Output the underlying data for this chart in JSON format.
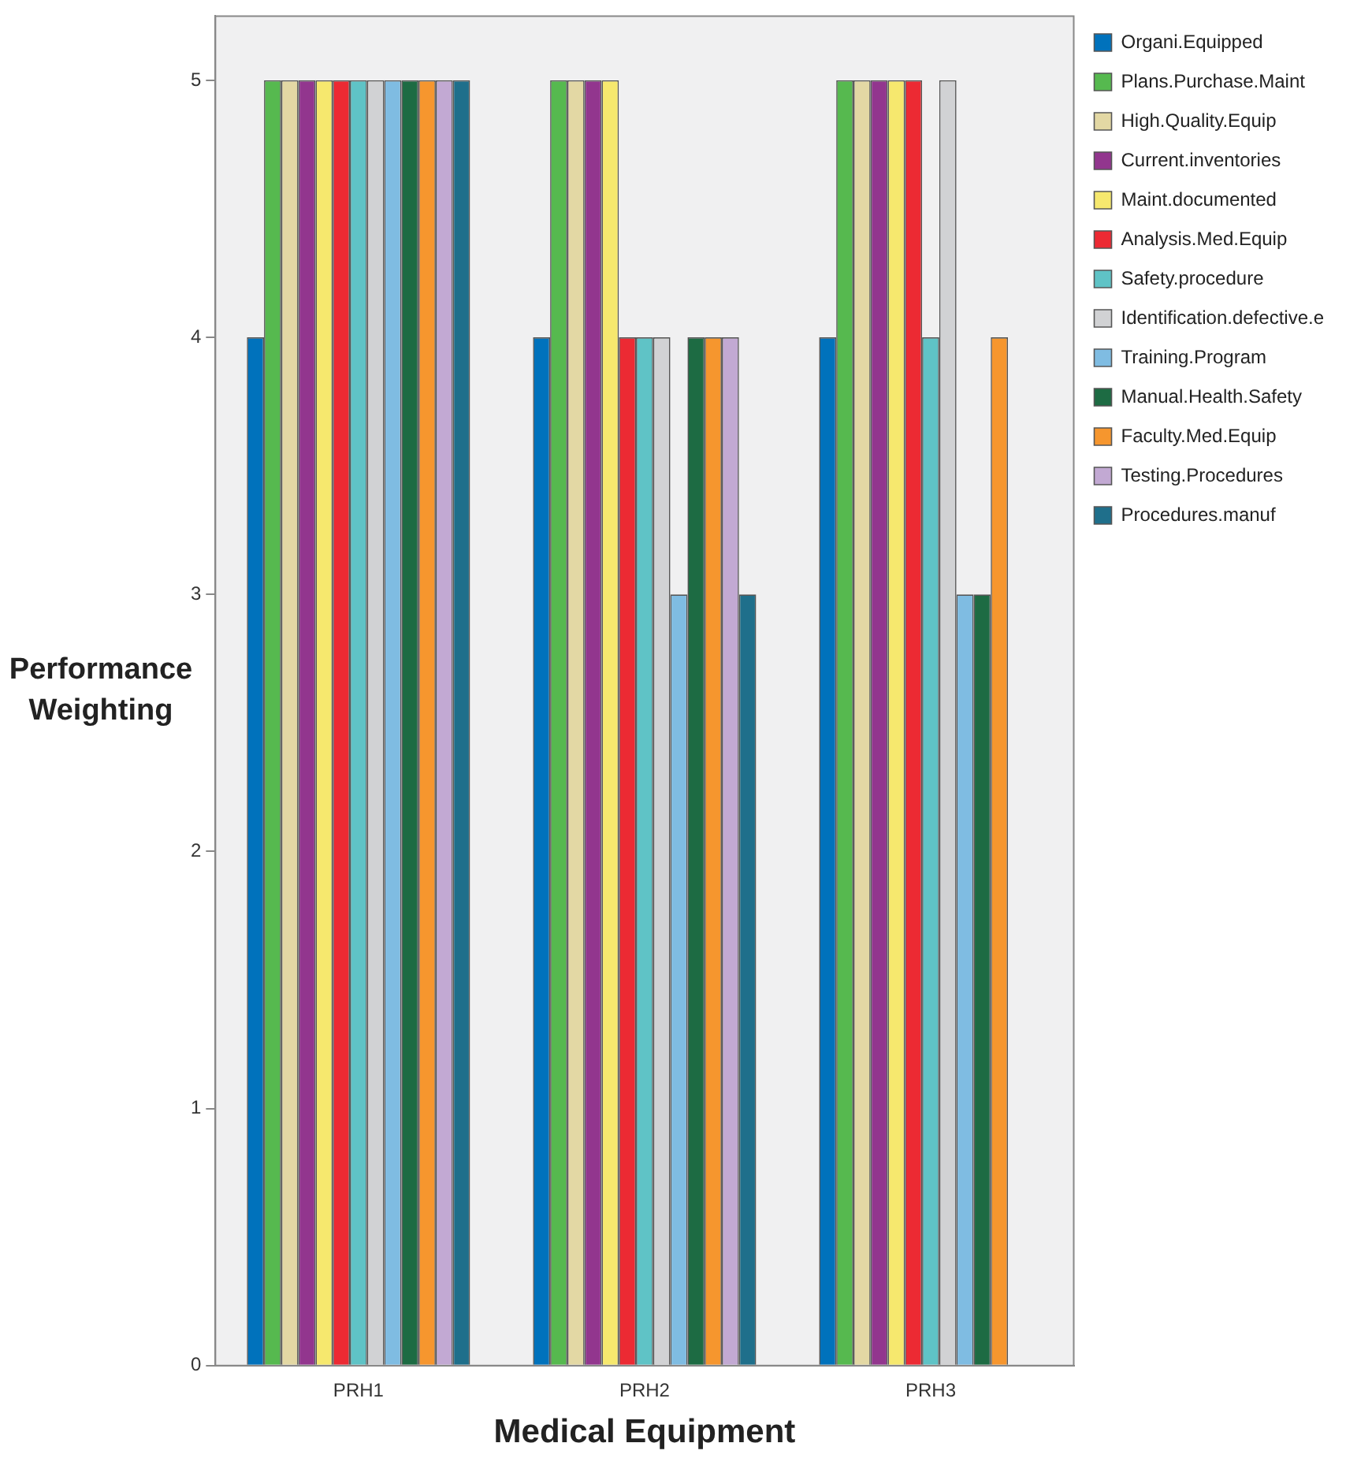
{
  "chart_data": {
    "type": "bar",
    "xlabel": "Medical Equipment",
    "ylabel": "Performance Weighting",
    "categories": [
      "PRH1",
      "PRH2",
      "PRH3"
    ],
    "series": [
      {
        "name": "Organi.Equipped",
        "color": "#0072bc",
        "values": [
          4,
          4,
          4
        ]
      },
      {
        "name": "Plans.Purchase.Maint",
        "color": "#56b94f",
        "values": [
          5,
          5,
          5
        ]
      },
      {
        "name": "High.Quality.Equip",
        "color": "#e3d8a4",
        "values": [
          5,
          5,
          5
        ]
      },
      {
        "name": "Current.inventories",
        "color": "#92368e",
        "values": [
          5,
          5,
          5
        ]
      },
      {
        "name": "Maint.documented",
        "color": "#f6e86e",
        "values": [
          5,
          5,
          5
        ]
      },
      {
        "name": "Analysis.Med.Equip",
        "color": "#ec2a33",
        "values": [
          5,
          4,
          5
        ]
      },
      {
        "name": "Safety.procedure",
        "color": "#5fc3c6",
        "values": [
          5,
          4,
          4
        ]
      },
      {
        "name": "Identification.defective.e",
        "color": "#d1d2d4",
        "values": [
          5,
          4,
          5
        ]
      },
      {
        "name": "Training.Program",
        "color": "#7fbce2",
        "values": [
          5,
          3,
          3
        ]
      },
      {
        "name": "Manual.Health.Safety",
        "color": "#1d6b43",
        "values": [
          5,
          4,
          3
        ]
      },
      {
        "name": "Faculty.Med.Equip",
        "color": "#f6962e",
        "values": [
          5,
          4,
          4
        ]
      },
      {
        "name": "Testing.Procedures",
        "color": "#c2a9d3",
        "values": [
          5,
          4,
          null
        ]
      },
      {
        "name": "Procedures.manuf",
        "color": "#1f6f8b",
        "values": [
          5,
          3,
          null
        ]
      }
    ],
    "ylim": [
      0,
      5.25
    ],
    "yticks": [
      0,
      1,
      2,
      3,
      4,
      5
    ],
    "grid": false,
    "legend": "top right"
  }
}
